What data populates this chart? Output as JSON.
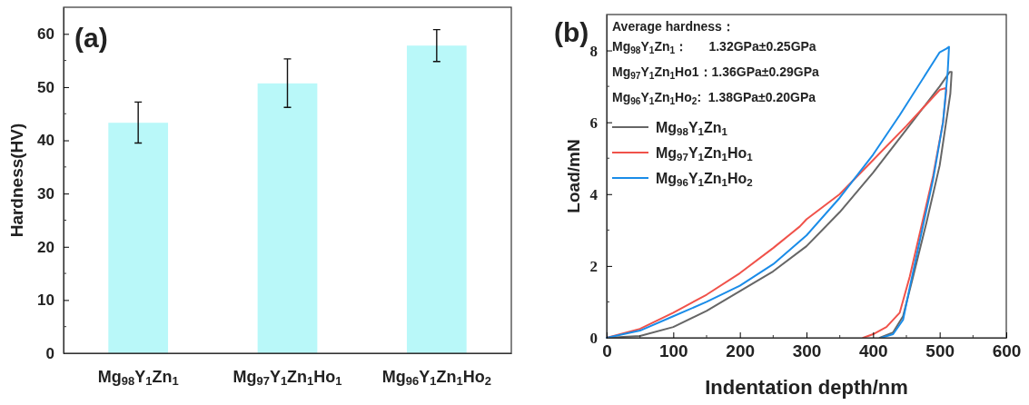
{
  "chart_data": [
    {
      "type": "bar",
      "title": "(a)",
      "ylabel": "Hardness(HV)",
      "categories": [
        "Mg$_{98}$Y$_{1}$Zn$_{1}$",
        "Mg$_{97}$Y$_{1}$Zn$_{1}$Ho$_{1}$",
        "Mg$_{96}$Y$_{1}$Zn$_{1}$Ho$_{2}$"
      ],
      "values": [
        43.3,
        50.7,
        57.8
      ],
      "errors": [
        [
          39.5,
          47.2
        ],
        [
          46.2,
          55.3
        ],
        [
          54.8,
          60.8
        ]
      ],
      "color": "#b9f8f9",
      "ylim": [
        0,
        65
      ],
      "yticks": [
        0,
        10,
        20,
        30,
        40,
        50,
        60
      ]
    },
    {
      "type": "line",
      "title": "(b)",
      "xlabel": "Indentation depth/nm",
      "ylabel": "Load/mN",
      "xlim": [
        0,
        600
      ],
      "ylim": [
        0,
        9
      ],
      "xticks": [
        0,
        100,
        200,
        300,
        400,
        500,
        600
      ],
      "yticks": [
        0,
        2,
        4,
        6,
        8
      ],
      "legend": "top left",
      "annotations": [
        "Average hardness：",
        "Mg$_{98}$Y$_{1}$Zn$_{1}$：      1.32GPa±0.25GPa",
        "Mg$_{97}$Y$_{1}$Zn$_{1}$Ho1：1.36GPa±0.29GPa",
        "Mg$_{96}$Y$_{1}$Zn$_{1}$Ho$_{2}$:  1.38GPa±0.20GPa"
      ],
      "series": [
        {
          "name": "Mg$_{98}$Y$_{1}$Zn$_{1}$",
          "color": "#666666",
          "x": [
            0,
            50,
            100,
            150,
            200,
            250,
            300,
            350,
            400,
            450,
            500,
            515,
            518,
            516,
            500,
            480,
            460,
            445,
            430,
            410
          ],
          "values": [
            0,
            0.05,
            0.3,
            0.75,
            1.3,
            1.85,
            2.55,
            3.5,
            4.6,
            5.8,
            7.0,
            7.4,
            7.4,
            6.8,
            4.8,
            3.2,
            1.7,
            0.6,
            0.15,
            0
          ]
        },
        {
          "name": "Mg$_{97}$Y$_{1}$Zn$_{1}$Ho$_{1}$",
          "color": "#f0524a",
          "x": [
            0,
            50,
            100,
            150,
            200,
            250,
            290,
            300,
            350,
            400,
            450,
            500,
            508,
            510,
            505,
            490,
            470,
            455,
            440,
            420,
            400,
            385
          ],
          "values": [
            0,
            0.25,
            0.7,
            1.2,
            1.8,
            2.5,
            3.1,
            3.3,
            4.0,
            4.95,
            5.9,
            6.9,
            6.95,
            6.9,
            6.0,
            4.5,
            2.9,
            1.7,
            0.7,
            0.3,
            0.1,
            0
          ]
        },
        {
          "name": "Mg$_{96}$Y$_{1}$Zn$_{1}$Ho$_{2}$",
          "color": "#1a8ce8",
          "x": [
            0,
            50,
            100,
            150,
            200,
            250,
            300,
            350,
            400,
            440,
            500,
            510,
            514,
            512,
            505,
            490,
            470,
            455,
            445,
            430,
            412
          ],
          "values": [
            0,
            0.2,
            0.6,
            1.0,
            1.45,
            2.05,
            2.85,
            3.9,
            5.1,
            6.2,
            7.95,
            8.05,
            8.1,
            7.4,
            6.0,
            4.4,
            2.7,
            1.4,
            0.5,
            0.1,
            0
          ]
        }
      ]
    }
  ]
}
